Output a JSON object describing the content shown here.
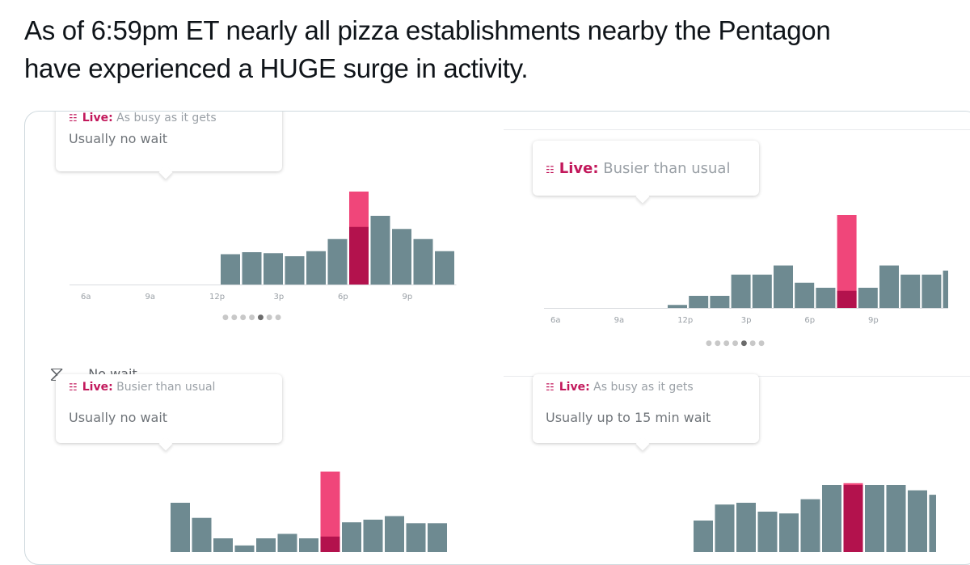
{
  "tweet": {
    "text_line1": "As of 6:59pm ET nearly all pizza establishments nearby the Pentagon",
    "text_line2": "have experienced a HUGE surge in activity."
  },
  "colors": {
    "bar": "#6e8a91",
    "live_bar": "#f0467a",
    "live_overlap": "#b3124d",
    "live_label": "#c2185b"
  },
  "icons": {
    "people": "people-icon",
    "hourglass": "hourglass-icon"
  },
  "hours_axis": [
    "6a",
    "9a",
    "12p",
    "3p",
    "6p",
    "9p"
  ],
  "panels": [
    {
      "live_label": "Live:",
      "live_status": "As busy as it gets",
      "wait": "Usually no wait",
      "live_hour_index": 12,
      "usual": [
        0,
        0,
        0,
        0,
        0,
        0,
        30,
        32,
        31,
        28,
        33,
        45,
        57,
        68,
        55,
        45,
        33
      ],
      "live_value": 92
    },
    {
      "live_label": "Live:",
      "live_status": "Busier than usual",
      "wait": "",
      "live_hour_index": 13,
      "usual": [
        0,
        0,
        0,
        0,
        0,
        3,
        12,
        12,
        33,
        33,
        42,
        25,
        20,
        17,
        20,
        42,
        33,
        33,
        37
      ],
      "live_value": 92
    },
    {
      "live_label": "Live:",
      "live_status": "Busier than usual",
      "wait": "Usually no wait",
      "live_hour_index": 7,
      "usual": [
        60,
        43,
        20,
        12,
        20,
        25,
        20,
        22,
        38,
        41,
        45,
        37,
        37
      ],
      "live_value": 95
    },
    {
      "live_label": "Live:",
      "live_status": "As busy as it gets",
      "wait": "Usually up to 15 min wait",
      "live_hour_index": 7,
      "usual": [
        40,
        58,
        60,
        50,
        48,
        64,
        80,
        80,
        80,
        80,
        74,
        69
      ],
      "live_value": 82
    }
  ],
  "pager": {
    "total": 7,
    "active": 5
  },
  "no_wait": {
    "label": "No wait"
  }
}
